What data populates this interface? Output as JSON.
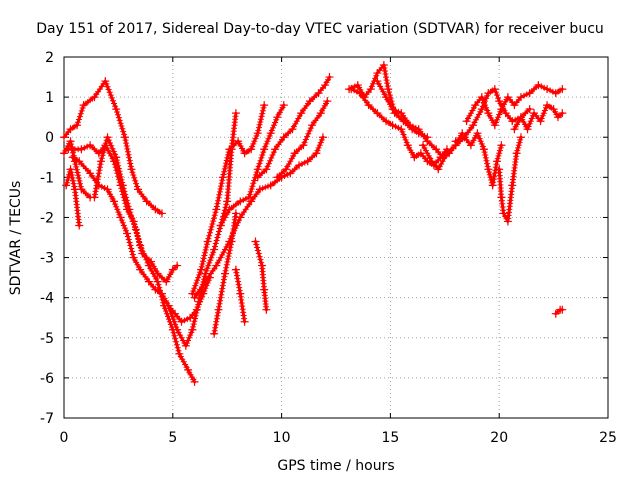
{
  "chart_data": {
    "type": "scatter",
    "title": "Day 151 of 2017, Sidereal Day-to-day VTEC variation (SDTVAR) for receiver bucu",
    "xlabel": "GPS time / hours",
    "ylabel": "SDTVAR / TECUs",
    "xlim": [
      0,
      25
    ],
    "ylim": [
      -7,
      2
    ],
    "x_ticks": [
      "0",
      "5",
      "10",
      "15",
      "20",
      "25"
    ],
    "y_ticks": [
      "-7",
      "-6",
      "-5",
      "-4",
      "-3",
      "-2",
      "-1",
      "0",
      "1",
      "2"
    ],
    "grid": true,
    "marker": "+",
    "color": "#ff0000",
    "tracks": [
      {
        "points": [
          [
            0.0,
            -0.4
          ],
          [
            0.3,
            -0.1
          ],
          [
            0.5,
            -0.6
          ],
          [
            0.8,
            -1.3
          ],
          [
            1.2,
            -1.5
          ]
        ]
      },
      {
        "points": [
          [
            0.1,
            -1.2
          ],
          [
            0.3,
            -0.8
          ],
          [
            0.5,
            -1.3
          ],
          [
            0.7,
            -2.2
          ]
        ]
      },
      {
        "points": [
          [
            0.0,
            0.0
          ],
          [
            0.3,
            0.2
          ],
          [
            0.6,
            0.3
          ],
          [
            0.9,
            0.8
          ],
          [
            1.4,
            1.0
          ],
          [
            1.9,
            1.4
          ],
          [
            2.4,
            0.7
          ],
          [
            2.8,
            0.0
          ],
          [
            3.1,
            -0.8
          ],
          [
            3.4,
            -1.3
          ],
          [
            3.8,
            -1.6
          ],
          [
            4.2,
            -1.8
          ],
          [
            4.5,
            -1.9
          ]
        ]
      },
      {
        "points": [
          [
            0.2,
            -0.3
          ],
          [
            0.8,
            -0.3
          ],
          [
            1.2,
            -0.2
          ],
          [
            1.6,
            -0.4
          ],
          [
            1.9,
            -0.2
          ],
          [
            2.3,
            -0.6
          ],
          [
            2.6,
            -1.2
          ],
          [
            2.9,
            -1.8
          ],
          [
            3.2,
            -2.1
          ],
          [
            3.5,
            -2.7
          ],
          [
            3.9,
            -3.2
          ],
          [
            4.3,
            -3.6
          ],
          [
            4.6,
            -4.2
          ],
          [
            5.0,
            -4.8
          ],
          [
            5.3,
            -5.4
          ],
          [
            5.7,
            -5.8
          ],
          [
            6.0,
            -6.1
          ]
        ]
      },
      {
        "points": [
          [
            0.4,
            -0.5
          ],
          [
            0.7,
            -0.6
          ],
          [
            1.2,
            -0.9
          ],
          [
            1.6,
            -1.2
          ],
          [
            2.0,
            -1.3
          ],
          [
            2.3,
            -1.6
          ],
          [
            2.6,
            -2.0
          ],
          [
            2.9,
            -2.4
          ],
          [
            3.2,
            -3.0
          ],
          [
            3.5,
            -3.3
          ],
          [
            3.9,
            -3.6
          ],
          [
            4.2,
            -3.8
          ],
          [
            4.5,
            -3.9
          ],
          [
            4.8,
            -4.2
          ],
          [
            5.1,
            -4.4
          ],
          [
            5.4,
            -4.6
          ],
          [
            5.8,
            -4.5
          ],
          [
            6.1,
            -4.3
          ],
          [
            6.4,
            -3.9
          ],
          [
            6.7,
            -3.5
          ]
        ]
      },
      {
        "points": [
          [
            1.4,
            -1.5
          ],
          [
            1.7,
            -0.6
          ],
          [
            2.0,
            0.0
          ],
          [
            2.4,
            -0.5
          ],
          [
            2.7,
            -1.2
          ],
          [
            3.0,
            -1.8
          ],
          [
            3.3,
            -2.3
          ],
          [
            3.6,
            -2.9
          ],
          [
            4.0,
            -3.1
          ],
          [
            4.3,
            -3.4
          ],
          [
            4.7,
            -3.6
          ],
          [
            5.0,
            -3.3
          ],
          [
            5.2,
            -3.2
          ]
        ]
      },
      {
        "points": [
          [
            4.8,
            -4.2
          ],
          [
            5.2,
            -4.8
          ],
          [
            5.6,
            -5.2
          ],
          [
            5.9,
            -4.8
          ],
          [
            6.2,
            -4.1
          ],
          [
            6.5,
            -3.4
          ],
          [
            6.9,
            -2.8
          ],
          [
            7.2,
            -2.2
          ],
          [
            7.5,
            -1.6
          ],
          [
            7.7,
            -0.3
          ],
          [
            7.9,
            0.6
          ]
        ]
      },
      {
        "points": [
          [
            5.9,
            -3.9
          ],
          [
            6.3,
            -3.3
          ],
          [
            6.6,
            -2.6
          ],
          [
            7.0,
            -1.8
          ],
          [
            7.3,
            -1.0
          ],
          [
            7.6,
            -0.3
          ],
          [
            8.0,
            -0.1
          ],
          [
            8.3,
            -0.4
          ],
          [
            8.6,
            -0.3
          ],
          [
            8.9,
            0.1
          ],
          [
            9.2,
            0.8
          ]
        ]
      },
      {
        "points": [
          [
            7.2,
            -2.2
          ],
          [
            7.6,
            -1.8
          ],
          [
            8.1,
            -1.6
          ],
          [
            8.5,
            -1.5
          ],
          [
            8.9,
            -0.8
          ],
          [
            9.2,
            -0.3
          ],
          [
            9.5,
            0.1
          ],
          [
            9.8,
            0.5
          ],
          [
            10.1,
            0.8
          ]
        ]
      },
      {
        "points": [
          [
            6.0,
            -4.0
          ],
          [
            6.5,
            -3.6
          ],
          [
            7.0,
            -3.2
          ],
          [
            7.6,
            -2.6
          ],
          [
            8.1,
            -2.0
          ],
          [
            8.6,
            -1.6
          ],
          [
            9.0,
            -1.3
          ],
          [
            9.5,
            -1.2
          ],
          [
            10.0,
            -1.0
          ],
          [
            10.4,
            -0.9
          ],
          [
            10.8,
            -0.7
          ],
          [
            11.2,
            -0.6
          ],
          [
            11.6,
            -0.4
          ],
          [
            11.9,
            0.0
          ]
        ]
      },
      {
        "points": [
          [
            8.9,
            -1.0
          ],
          [
            9.3,
            -0.8
          ],
          [
            9.7,
            -0.3
          ],
          [
            10.1,
            0.0
          ],
          [
            10.5,
            0.2
          ],
          [
            10.9,
            0.6
          ],
          [
            11.3,
            0.9
          ],
          [
            11.7,
            1.1
          ],
          [
            12.0,
            1.3
          ],
          [
            12.2,
            1.5
          ]
        ]
      },
      {
        "points": [
          [
            9.8,
            -1.0
          ],
          [
            10.2,
            -0.8
          ],
          [
            10.6,
            -0.4
          ],
          [
            11.0,
            -0.2
          ],
          [
            11.4,
            0.3
          ],
          [
            11.8,
            0.6
          ],
          [
            12.1,
            0.9
          ]
        ]
      },
      {
        "points": [
          [
            6.9,
            -4.9
          ],
          [
            7.1,
            -4.3
          ],
          [
            7.4,
            -3.4
          ],
          [
            7.7,
            -2.6
          ],
          [
            7.9,
            -1.9
          ]
        ]
      },
      {
        "points": [
          [
            7.9,
            -3.3
          ],
          [
            8.1,
            -3.9
          ],
          [
            8.3,
            -4.6
          ]
        ]
      },
      {
        "points": [
          [
            8.8,
            -2.6
          ],
          [
            9.1,
            -3.2
          ],
          [
            9.2,
            -3.8
          ],
          [
            9.3,
            -4.3
          ]
        ]
      },
      {
        "points": [
          [
            13.1,
            1.2
          ],
          [
            13.5,
            1.3
          ],
          [
            13.8,
            1.0
          ],
          [
            14.1,
            1.2
          ],
          [
            14.4,
            1.6
          ],
          [
            14.7,
            1.8
          ],
          [
            14.9,
            1.2
          ],
          [
            15.2,
            0.6
          ],
          [
            15.6,
            0.4
          ],
          [
            16.0,
            0.2
          ],
          [
            16.3,
            0.1
          ],
          [
            16.7,
            0.0
          ]
        ]
      },
      {
        "points": [
          [
            13.2,
            1.2
          ],
          [
            13.6,
            1.1
          ],
          [
            14.0,
            0.8
          ],
          [
            14.4,
            0.6
          ],
          [
            14.8,
            0.4
          ],
          [
            15.1,
            0.3
          ],
          [
            15.5,
            0.2
          ],
          [
            15.8,
            -0.2
          ],
          [
            16.1,
            -0.5
          ],
          [
            16.4,
            -0.4
          ],
          [
            16.7,
            -0.6
          ],
          [
            17.0,
            -0.7
          ],
          [
            17.3,
            -0.5
          ],
          [
            17.6,
            -0.3
          ]
        ]
      },
      {
        "points": [
          [
            14.4,
            1.4
          ],
          [
            14.8,
            1.0
          ],
          [
            15.1,
            0.7
          ],
          [
            15.5,
            0.6
          ],
          [
            15.9,
            0.3
          ],
          [
            16.3,
            0.2
          ],
          [
            16.7,
            -0.1
          ],
          [
            17.1,
            -0.3
          ],
          [
            17.4,
            -0.5
          ],
          [
            17.7,
            -0.4
          ],
          [
            18.0,
            -0.2
          ],
          [
            18.3,
            0.1
          ]
        ]
      },
      {
        "points": [
          [
            16.5,
            -0.2
          ],
          [
            16.9,
            -0.6
          ],
          [
            17.2,
            -0.8
          ],
          [
            17.6,
            -0.4
          ],
          [
            18.0,
            -0.2
          ],
          [
            18.4,
            0.0
          ],
          [
            18.8,
            0.3
          ],
          [
            19.2,
            0.7
          ],
          [
            19.5,
            1.1
          ],
          [
            19.8,
            1.2
          ],
          [
            20.0,
            0.9
          ],
          [
            20.3,
            0.6
          ],
          [
            20.6,
            0.4
          ],
          [
            21.0,
            0.5
          ],
          [
            21.4,
            0.7
          ]
        ]
      },
      {
        "points": [
          [
            18.5,
            0.4
          ],
          [
            18.9,
            0.8
          ],
          [
            19.2,
            1.0
          ],
          [
            19.5,
            0.6
          ],
          [
            19.8,
            0.3
          ],
          [
            20.1,
            0.7
          ],
          [
            20.4,
            1.0
          ],
          [
            20.7,
            0.8
          ],
          [
            21.0,
            1.0
          ],
          [
            21.4,
            1.1
          ],
          [
            21.8,
            1.3
          ],
          [
            22.2,
            1.2
          ],
          [
            22.6,
            1.1
          ],
          [
            22.9,
            1.2
          ]
        ]
      },
      {
        "points": [
          [
            18.0,
            -0.1
          ],
          [
            18.4,
            0.0
          ],
          [
            18.7,
            -0.2
          ],
          [
            19.0,
            0.1
          ],
          [
            19.3,
            -0.3
          ],
          [
            19.5,
            -0.8
          ],
          [
            19.7,
            -1.2
          ],
          [
            19.9,
            -0.6
          ],
          [
            20.1,
            -0.2
          ]
        ]
      },
      {
        "points": [
          [
            20.0,
            -0.8
          ],
          [
            20.1,
            -1.5
          ],
          [
            20.2,
            -1.9
          ],
          [
            20.4,
            -2.1
          ],
          [
            20.6,
            -1.2
          ],
          [
            20.8,
            -0.4
          ],
          [
            21.0,
            0.0
          ]
        ]
      },
      {
        "points": [
          [
            20.7,
            0.2
          ],
          [
            21.0,
            0.5
          ],
          [
            21.3,
            0.2
          ],
          [
            21.6,
            0.6
          ],
          [
            21.9,
            0.4
          ],
          [
            22.2,
            0.8
          ],
          [
            22.5,
            0.7
          ],
          [
            22.7,
            0.5
          ],
          [
            22.9,
            0.6
          ]
        ]
      },
      {
        "points": [
          [
            22.6,
            -4.4
          ],
          [
            22.8,
            -4.3
          ],
          [
            22.9,
            -4.3
          ]
        ]
      }
    ]
  }
}
